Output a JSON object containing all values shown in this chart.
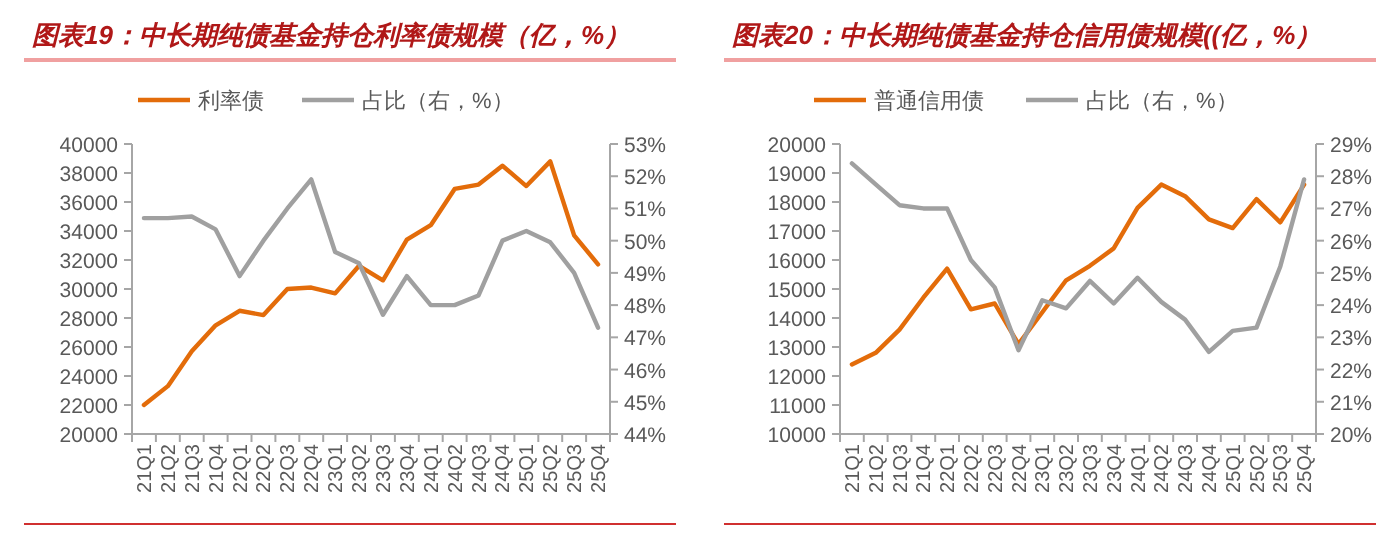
{
  "chart_data": [
    {
      "type": "line",
      "title": "图表19：中长期纯债基金持仓利率债规模（亿，%）",
      "legend": "top",
      "categories": [
        "21Q1",
        "21Q2",
        "21Q3",
        "21Q4",
        "22Q1",
        "22Q2",
        "22Q3",
        "22Q4",
        "23Q1",
        "23Q2",
        "23Q3",
        "23Q4",
        "24Q1",
        "24Q2",
        "24Q3",
        "24Q4",
        "25Q1",
        "25Q2",
        "25Q3",
        "25Q4"
      ],
      "series": [
        {
          "name": "利率债",
          "color": "#e36c0a",
          "values": [
            22000,
            23300,
            25700,
            27500,
            28500,
            28200,
            30000,
            30100,
            29700,
            31600,
            30600,
            33400,
            34400,
            36900,
            37200,
            38500,
            37100,
            38800,
            33700,
            31700
          ]
        },
        {
          "name": "占比（右，%）",
          "color": "#a0a0a0",
          "axis": "y2",
          "values": [
            50.7,
            50.7,
            50.75,
            50.35,
            48.9,
            50.0,
            51.0,
            51.9,
            49.65,
            49.3,
            47.7,
            48.9,
            48.0,
            48.0,
            48.3,
            50.0,
            50.3,
            49.95,
            49.0,
            47.3
          ]
        }
      ],
      "ylim": [
        20000,
        40000
      ],
      "yticks": [
        20000,
        22000,
        24000,
        26000,
        28000,
        30000,
        32000,
        34000,
        36000,
        38000,
        40000
      ],
      "y2lim": [
        44,
        53
      ],
      "y2ticks": [
        {
          "value": 44,
          "label": "44%"
        },
        {
          "value": 45,
          "label": "45%"
        },
        {
          "value": 46,
          "label": "46%"
        },
        {
          "value": 47,
          "label": "47%"
        },
        {
          "value": 48,
          "label": "48%"
        },
        {
          "value": 49,
          "label": "49%"
        },
        {
          "value": 50,
          "label": "50%"
        },
        {
          "value": 51,
          "label": "51%"
        },
        {
          "value": 52,
          "label": "52%"
        },
        {
          "value": 53,
          "label": "53%"
        }
      ]
    },
    {
      "type": "line",
      "title": "图表20：中长期纯债基金持仓信用债规模((亿，%）",
      "legend": "top",
      "categories": [
        "21Q1",
        "21Q2",
        "21Q3",
        "21Q4",
        "22Q1",
        "22Q2",
        "22Q3",
        "22Q4",
        "23Q1",
        "23Q2",
        "23Q3",
        "23Q4",
        "24Q1",
        "24Q2",
        "24Q3",
        "24Q4",
        "25Q1",
        "25Q2",
        "25Q3",
        "25Q4"
      ],
      "series": [
        {
          "name": "普通信用债",
          "color": "#e36c0a",
          "values": [
            12400,
            12800,
            13600,
            14700,
            15700,
            14300,
            14500,
            13100,
            14200,
            15300,
            15800,
            16400,
            17800,
            18600,
            18200,
            17400,
            17100,
            18100,
            17300,
            18600
          ]
        },
        {
          "name": "占比（右，%）",
          "color": "#a0a0a0",
          "axis": "y2",
          "values": [
            28.4,
            27.75,
            27.1,
            27.0,
            27.0,
            25.4,
            24.55,
            22.6,
            24.15,
            23.9,
            24.75,
            24.05,
            24.85,
            24.1,
            23.55,
            22.55,
            23.2,
            23.3,
            25.2,
            27.9
          ]
        }
      ],
      "ylim": [
        10000,
        20000
      ],
      "yticks": [
        10000,
        11000,
        12000,
        13000,
        14000,
        15000,
        16000,
        17000,
        18000,
        19000,
        20000
      ],
      "y2lim": [
        20,
        29
      ],
      "y2ticks": [
        {
          "value": 20,
          "label": "20%"
        },
        {
          "value": 21,
          "label": "21%"
        },
        {
          "value": 22,
          "label": "22%"
        },
        {
          "value": 23,
          "label": "23%"
        },
        {
          "value": 24,
          "label": "24%"
        },
        {
          "value": 25,
          "label": "25%"
        },
        {
          "value": 26,
          "label": "26%"
        },
        {
          "value": 27,
          "label": "27%"
        },
        {
          "value": 28,
          "label": "28%"
        },
        {
          "value": 29,
          "label": "29%"
        }
      ]
    }
  ]
}
